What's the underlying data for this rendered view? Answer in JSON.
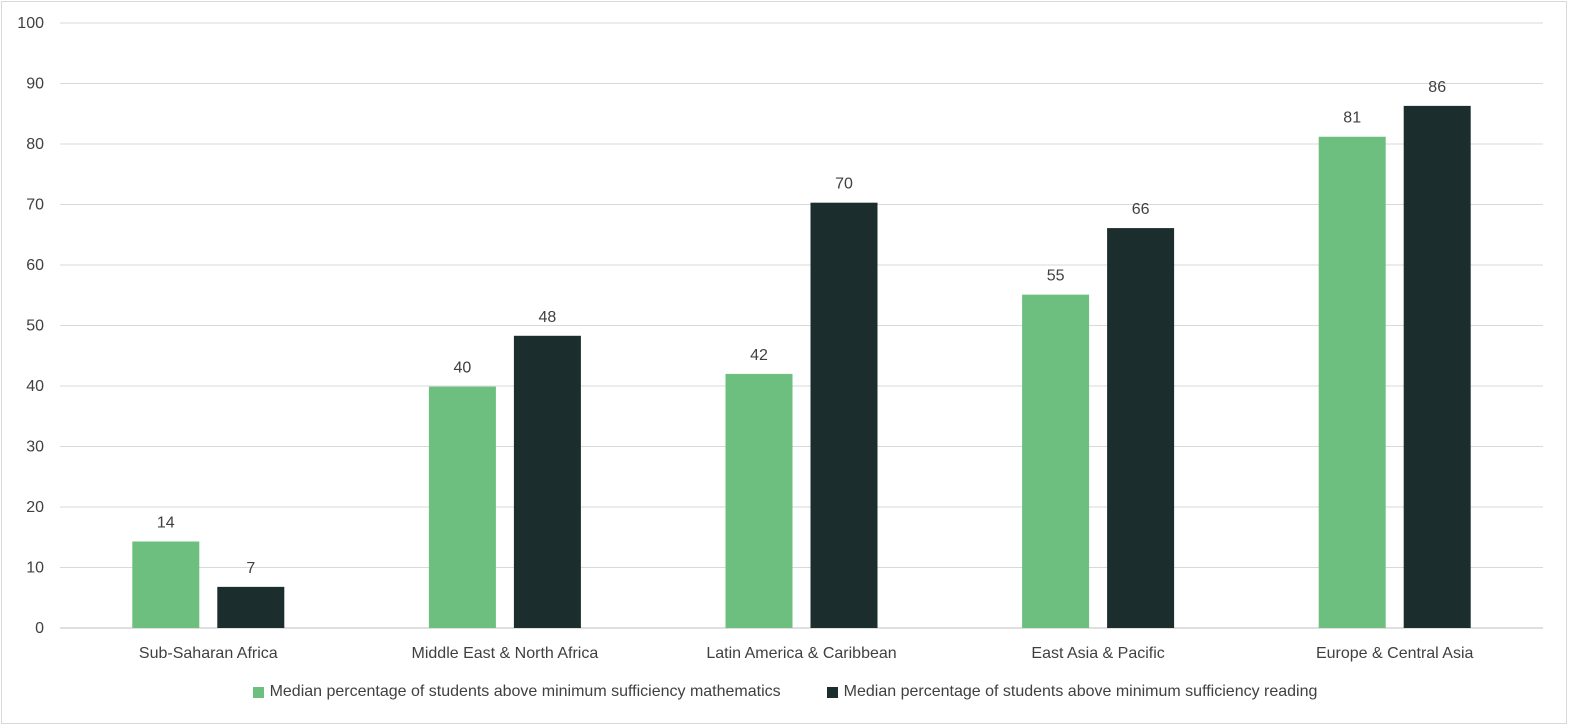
{
  "chart_data": {
    "type": "bar",
    "title": "",
    "xlabel": "",
    "ylabel": "",
    "ylim": [
      0,
      100
    ],
    "yticks": [
      0,
      10,
      20,
      30,
      40,
      50,
      60,
      70,
      80,
      90,
      100
    ],
    "grid": true,
    "legend_position": "bottom",
    "categories": [
      "Sub-Saharan Africa",
      "Middle East & North Africa",
      "Latin America & Caribbean",
      "East Asia & Pacific",
      "Europe & Central Asia"
    ],
    "series": [
      {
        "name": "Median percentage of students above minimum sufficiency mathematics",
        "values": [
          14.3,
          39.9,
          42.0,
          55.1,
          81.2
        ],
        "labels": [
          "14",
          "40",
          "42",
          "55",
          "81"
        ],
        "color": "#6dbf80"
      },
      {
        "name": "Median percentage of students above minimum sufficiency reading",
        "values": [
          6.8,
          48.3,
          70.3,
          66.1,
          86.3
        ],
        "labels": [
          "7",
          "48",
          "70",
          "66",
          "86"
        ],
        "color": "#1b2e2d"
      }
    ]
  }
}
